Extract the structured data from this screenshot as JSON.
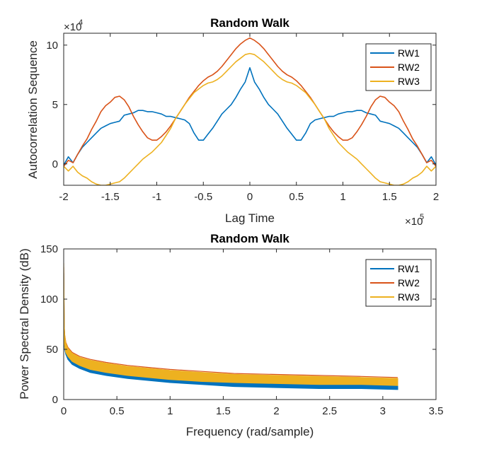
{
  "colors": {
    "rw1": "#0072BD",
    "rw2": "#D95319",
    "rw3": "#EDB120",
    "axis": "#262626"
  },
  "chart_data": [
    {
      "type": "line",
      "title": "Random Walk",
      "xlabel": "Lag Time",
      "ylabel": "Autocorrelation Sequence",
      "x_exponent_label": "×10",
      "x_exponent": "5",
      "y_exponent_label": "×10",
      "y_exponent": "4",
      "xlim": [
        -2,
        2
      ],
      "ylim": [
        -1.8,
        11
      ],
      "xticks": [
        -2,
        -1.5,
        -1,
        -0.5,
        0,
        0.5,
        1,
        1.5,
        2
      ],
      "xtick_labels": [
        "-2",
        "-1.5",
        "-1",
        "-0.5",
        "0",
        "0.5",
        "1",
        "1.5",
        "2"
      ],
      "yticks": [
        0,
        5,
        10
      ],
      "ytick_labels": [
        "0",
        "5",
        "10"
      ],
      "grid": false,
      "legend_position": "top-right",
      "x": [
        0,
        0.05,
        0.1,
        0.15,
        0.2,
        0.25,
        0.3,
        0.35,
        0.4,
        0.45,
        0.5,
        0.55,
        0.6,
        0.65,
        0.7,
        0.75,
        0.8,
        0.85,
        0.9,
        0.95,
        1.0,
        1.05,
        1.1,
        1.15,
        1.2,
        1.25,
        1.3,
        1.35,
        1.4,
        1.45,
        1.5,
        1.55,
        1.6,
        1.65,
        1.7,
        1.75,
        1.8,
        1.85,
        1.9,
        1.95,
        2.0
      ],
      "series": [
        {
          "name": "RW1",
          "values": [
            8.1,
            6.9,
            6.3,
            5.6,
            5.0,
            4.6,
            4.2,
            3.6,
            3.0,
            2.5,
            2.0,
            2.0,
            2.6,
            3.4,
            3.7,
            3.8,
            3.9,
            4.0,
            4.0,
            4.2,
            4.3,
            4.4,
            4.4,
            4.5,
            4.5,
            4.3,
            4.2,
            4.1,
            3.6,
            3.5,
            3.4,
            3.2,
            3.0,
            2.6,
            2.2,
            1.8,
            1.4,
            0.8,
            0.1,
            0.6,
            -0.1
          ]
        },
        {
          "name": "RW2",
          "values": [
            10.6,
            10.4,
            10.1,
            9.7,
            9.2,
            8.7,
            8.2,
            7.8,
            7.5,
            7.3,
            7.0,
            6.6,
            6.1,
            5.6,
            5.0,
            4.4,
            3.8,
            3.2,
            2.7,
            2.3,
            2.0,
            2.0,
            2.2,
            2.7,
            3.3,
            4.0,
            4.8,
            5.4,
            5.7,
            5.6,
            5.2,
            4.9,
            4.4,
            3.6,
            2.9,
            2.1,
            1.5,
            0.8,
            0.1,
            0.3,
            -0.2
          ]
        },
        {
          "name": "RW3",
          "values": [
            9.3,
            9.2,
            8.9,
            8.6,
            8.2,
            7.8,
            7.4,
            7.1,
            6.9,
            6.8,
            6.6,
            6.3,
            6.0,
            5.5,
            5.0,
            4.4,
            3.8,
            3.0,
            2.4,
            1.8,
            1.4,
            1.0,
            0.7,
            0.4,
            0.0,
            -0.4,
            -0.8,
            -1.2,
            -1.5,
            -1.6,
            -1.7,
            -1.8,
            -1.8,
            -1.7,
            -1.5,
            -1.2,
            -1.0,
            -0.7,
            -0.2,
            -0.6,
            -0.2
          ]
        }
      ]
    },
    {
      "type": "line",
      "title": "Random Walk",
      "xlabel": "Frequency (rad/sample)",
      "ylabel": "Power Spectral Density (dB)",
      "xlim": [
        0,
        3.5
      ],
      "ylim": [
        0,
        150
      ],
      "xticks": [
        0,
        0.5,
        1,
        1.5,
        2,
        2.5,
        3,
        3.5
      ],
      "xtick_labels": [
        "0",
        "0.5",
        "1",
        "1.5",
        "2",
        "2.5",
        "3",
        "3.5"
      ],
      "yticks": [
        0,
        50,
        100,
        150
      ],
      "ytick_labels": [
        "0",
        "50",
        "100",
        "150"
      ],
      "grid": false,
      "legend_position": "top-right",
      "x": [
        0.005,
        0.01,
        0.02,
        0.04,
        0.08,
        0.15,
        0.25,
        0.4,
        0.6,
        0.8,
        1.0,
        1.3,
        1.6,
        2.0,
        2.4,
        2.8,
        3.14
      ],
      "series": [
        {
          "name": "RW1",
          "peak": 126,
          "values_upper": [
            70,
            61,
            55,
            50,
            44,
            39,
            34,
            30,
            27,
            24,
            22,
            20,
            18,
            17,
            15,
            15,
            14
          ],
          "values_lower": [
            55,
            50,
            45,
            40,
            35,
            31,
            27,
            24,
            21,
            19,
            17,
            15,
            13,
            12,
            11,
            11,
            10
          ]
        },
        {
          "name": "RW2",
          "peak": 132,
          "values": [
            72,
            64,
            57,
            52,
            47,
            43,
            40,
            37,
            34,
            32,
            30,
            28,
            26,
            25,
            24,
            23,
            22
          ]
        },
        {
          "name": "RW3",
          "peak": 136,
          "values_upper": [
            72,
            63,
            56,
            51,
            46,
            42,
            39,
            36,
            33,
            31,
            29,
            27,
            25,
            24,
            23,
            22,
            21
          ],
          "values_lower": [
            58,
            52,
            47,
            43,
            38,
            34,
            30,
            27,
            24,
            22,
            20,
            18,
            17,
            16,
            15,
            15,
            14
          ]
        }
      ]
    }
  ]
}
